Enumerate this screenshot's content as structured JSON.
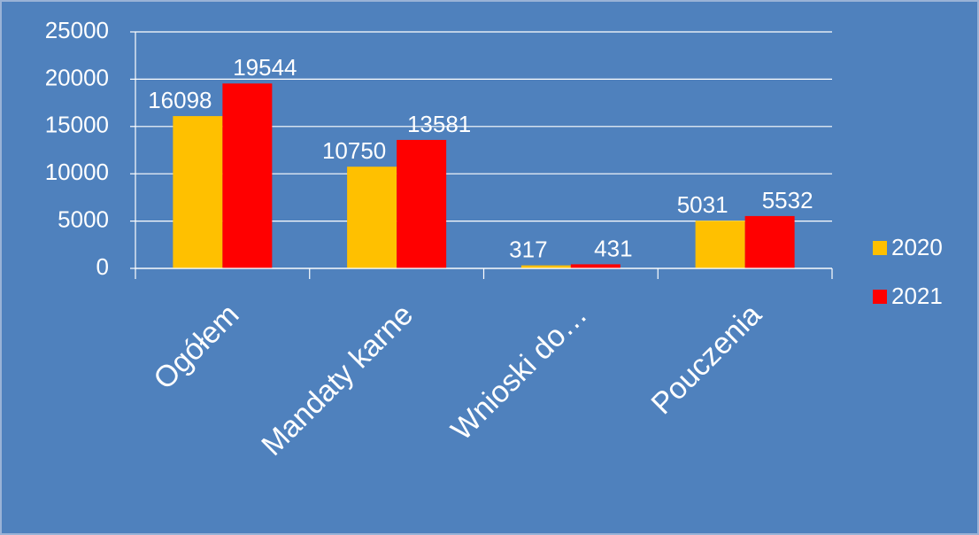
{
  "chart_data": {
    "type": "bar",
    "categories": [
      "Ogółem",
      "Mandaty karne",
      "Wnioski do…",
      "Pouczenia"
    ],
    "series": [
      {
        "name": "2020",
        "color": "#ffc000",
        "values": [
          16098,
          10750,
          317,
          5031
        ]
      },
      {
        "name": "2021",
        "color": "#ff0000",
        "values": [
          19544,
          13581,
          431,
          5532
        ]
      }
    ],
    "ylim": [
      0,
      25000
    ],
    "yticks": [
      0,
      5000,
      10000,
      15000,
      20000,
      25000
    ],
    "grid": true,
    "legend": "right"
  }
}
